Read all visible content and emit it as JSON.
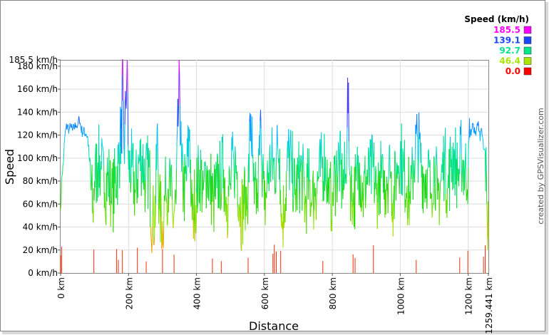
{
  "chart_data": {
    "type": "line",
    "ylabel": "Speed",
    "xlabel": "Distance",
    "credit": "created by GPSVisualizer.com",
    "xlim": [
      0,
      1259.441
    ],
    "ylim": [
      0,
      185.5
    ],
    "x_ticks": [
      {
        "value": 0,
        "label": "0 km"
      },
      {
        "value": 200,
        "label": "200 km"
      },
      {
        "value": 400,
        "label": "400 km"
      },
      {
        "value": 600,
        "label": "600 km"
      },
      {
        "value": 800,
        "label": "800 km"
      },
      {
        "value": 1000,
        "label": "1000 km"
      },
      {
        "value": 1200,
        "label": "1200 km"
      },
      {
        "value": 1259.441,
        "label": "1259.441 km"
      }
    ],
    "y_ticks": [
      {
        "value": 0,
        "label": "0 km/h"
      },
      {
        "value": 20,
        "label": "20 km/h"
      },
      {
        "value": 40,
        "label": "40 km/h"
      },
      {
        "value": 60,
        "label": "60 km/h"
      },
      {
        "value": 80,
        "label": "80 km/h"
      },
      {
        "value": 100,
        "label": "100 km/h"
      },
      {
        "value": 120,
        "label": "120 km/h"
      },
      {
        "value": 140,
        "label": "140 km/h"
      },
      {
        "value": 160,
        "label": "160 km/h"
      },
      {
        "value": 180,
        "label": "180 km/h"
      },
      {
        "value": 185.5,
        "label": "185.5 km/h"
      }
    ],
    "legend": {
      "title": "Speed (km/h)",
      "placement": "top-right",
      "entries": [
        {
          "label": "185.5",
          "color": "#ff00ff"
        },
        {
          "label": "139.1",
          "color": "#1a47ff"
        },
        {
          "label": "92.7",
          "color": "#00e68a"
        },
        {
          "label": "46.4",
          "color": "#a8e600"
        },
        {
          "label": "0.0",
          "color": "#ff0000"
        }
      ]
    },
    "color_scale": [
      {
        "value": 0,
        "color": "#ff0000"
      },
      {
        "value": 23.2,
        "color": "#ff8c00"
      },
      {
        "value": 46.4,
        "color": "#a8e600"
      },
      {
        "value": 69.5,
        "color": "#22d400"
      },
      {
        "value": 92.7,
        "color": "#00e68a"
      },
      {
        "value": 115.9,
        "color": "#00c8ff"
      },
      {
        "value": 139.1,
        "color": "#1a47ff"
      },
      {
        "value": 185.5,
        "color": "#ff00ff"
      }
    ],
    "series": [
      {
        "points": [
          [
            0,
            55
          ],
          [
            4,
            85
          ],
          [
            8,
            95
          ],
          [
            12,
            118
          ],
          [
            16,
            126
          ],
          [
            20,
            128
          ],
          [
            25,
            125
          ],
          [
            30,
            127
          ],
          [
            35,
            124
          ],
          [
            40,
            126
          ],
          [
            45,
            129
          ],
          [
            50,
            128
          ],
          [
            55,
            134
          ],
          [
            60,
            126
          ],
          [
            65,
            122
          ],
          [
            70,
            123
          ],
          [
            75,
            121
          ],
          [
            80,
            118
          ],
          [
            85,
            97
          ],
          [
            90,
            72
          ],
          [
            95,
            55
          ],
          [
            100,
            80
          ],
          [
            110,
            96
          ],
          [
            120,
            90
          ],
          [
            130,
            70
          ],
          [
            140,
            88
          ],
          [
            150,
            60
          ],
          [
            160,
            78
          ],
          [
            170,
            95
          ],
          [
            175,
            110
          ],
          [
            178,
            126
          ],
          [
            180,
            104
          ],
          [
            182,
            186
          ],
          [
            184,
            150
          ],
          [
            188,
            95
          ],
          [
            192,
            150
          ],
          [
            196,
            185
          ],
          [
            200,
            90
          ],
          [
            210,
            92
          ],
          [
            220,
            70
          ],
          [
            230,
            95
          ],
          [
            240,
            102
          ],
          [
            250,
            80
          ],
          [
            260,
            92
          ],
          [
            270,
            40
          ],
          [
            280,
            60
          ],
          [
            285,
            130
          ],
          [
            290,
            55
          ],
          [
            300,
            45
          ],
          [
            310,
            70
          ],
          [
            320,
            85
          ],
          [
            330,
            48
          ],
          [
            340,
            60
          ],
          [
            350,
            175
          ],
          [
            356,
            88
          ],
          [
            362,
            70
          ],
          [
            370,
            80
          ],
          [
            380,
            125
          ],
          [
            385,
            60
          ],
          [
            390,
            55
          ],
          [
            400,
            70
          ],
          [
            410,
            90
          ],
          [
            420,
            72
          ],
          [
            430,
            86
          ],
          [
            440,
            80
          ],
          [
            450,
            62
          ],
          [
            460,
            74
          ],
          [
            470,
            85
          ],
          [
            480,
            90
          ],
          [
            490,
            60
          ],
          [
            500,
            78
          ],
          [
            510,
            98
          ],
          [
            520,
            88
          ],
          [
            530,
            52
          ],
          [
            540,
            60
          ],
          [
            545,
            75
          ],
          [
            550,
            55
          ],
          [
            560,
            138
          ],
          [
            565,
            100
          ],
          [
            570,
            60
          ],
          [
            580,
            70
          ],
          [
            590,
            126
          ],
          [
            600,
            55
          ],
          [
            610,
            84
          ],
          [
            620,
            98
          ],
          [
            630,
            90
          ],
          [
            635,
            99
          ],
          [
            640,
            106
          ],
          [
            645,
            108
          ],
          [
            650,
            40
          ],
          [
            660,
            60
          ],
          [
            670,
            100
          ],
          [
            680,
            96
          ],
          [
            690,
            68
          ],
          [
            700,
            82
          ],
          [
            710,
            90
          ],
          [
            720,
            60
          ],
          [
            730,
            80
          ],
          [
            740,
            60
          ],
          [
            750,
            74
          ],
          [
            760,
            82
          ],
          [
            770,
            91
          ],
          [
            780,
            101
          ],
          [
            790,
            60
          ],
          [
            800,
            70
          ],
          [
            810,
            86
          ],
          [
            820,
            98
          ],
          [
            830,
            74
          ],
          [
            840,
            84
          ],
          [
            845,
            170
          ],
          [
            850,
            92
          ],
          [
            860,
            58
          ],
          [
            870,
            80
          ],
          [
            880,
            96
          ],
          [
            890,
            64
          ],
          [
            900,
            84
          ],
          [
            910,
            82
          ],
          [
            920,
            92
          ],
          [
            930,
            68
          ],
          [
            940,
            88
          ],
          [
            950,
            70
          ],
          [
            960,
            84
          ],
          [
            970,
            90
          ],
          [
            980,
            60
          ],
          [
            990,
            96
          ],
          [
            1000,
            106
          ],
          [
            1010,
            88
          ],
          [
            1020,
            76
          ],
          [
            1030,
            60
          ],
          [
            1040,
            98
          ],
          [
            1050,
            119
          ],
          [
            1060,
            96
          ],
          [
            1070,
            84
          ],
          [
            1080,
            90
          ],
          [
            1090,
            70
          ],
          [
            1100,
            100
          ],
          [
            1110,
            64
          ],
          [
            1120,
            80
          ],
          [
            1130,
            99
          ],
          [
            1140,
            74
          ],
          [
            1150,
            99
          ],
          [
            1160,
            104
          ],
          [
            1170,
            80
          ],
          [
            1180,
            104
          ],
          [
            1190,
            88
          ],
          [
            1200,
            92
          ],
          [
            1205,
            118
          ],
          [
            1210,
            125
          ],
          [
            1215,
            130
          ],
          [
            1220,
            121
          ],
          [
            1225,
            126
          ],
          [
            1230,
            132
          ],
          [
            1235,
            115
          ],
          [
            1240,
            125
          ],
          [
            1245,
            108
          ],
          [
            1250,
            105
          ],
          [
            1255,
            60
          ],
          [
            1259.441,
            30
          ]
        ]
      }
    ],
    "stops": [
      0,
      3,
      98,
      165,
      170,
      182,
      226,
      252,
      300,
      334,
      447,
      473,
      552,
      625,
      629,
      635,
      648,
      772,
      861,
      867,
      921,
      1047,
      1175,
      1199,
      1245,
      1250
    ]
  }
}
